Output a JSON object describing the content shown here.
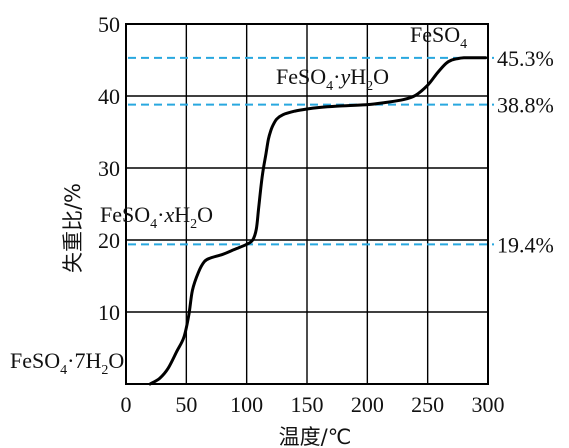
{
  "chart_data": {
    "type": "line",
    "xlabel": "温度/℃",
    "ylabel": "失重比/%",
    "xlim": [
      0,
      300
    ],
    "ylim": [
      0,
      50
    ],
    "x_ticks": [
      "0",
      "50",
      "100",
      "150",
      "200",
      "250",
      "300"
    ],
    "y_ticks": [
      "10",
      "20",
      "30",
      "40",
      "50"
    ],
    "grid": true,
    "series": [
      {
        "x": [
          20,
          28,
          35,
          42,
          48,
          52,
          55,
          60,
          65,
          70,
          80,
          90,
          100,
          105,
          108,
          110,
          113,
          116,
          118,
          120,
          122,
          125,
          130,
          140,
          150,
          160,
          175,
          200,
          215,
          230,
          240,
          250,
          258,
          265,
          270,
          275,
          280,
          290,
          298
        ],
        "y": [
          0,
          0.8,
          2.2,
          4.5,
          6.5,
          9.5,
          13,
          15.5,
          17,
          17.5,
          18,
          18.7,
          19.4,
          20,
          21.5,
          24.5,
          29,
          32,
          34,
          35.2,
          36,
          36.8,
          37.4,
          37.9,
          38.2,
          38.4,
          38.6,
          38.8,
          39.1,
          39.5,
          40.1,
          41.5,
          43.2,
          44.5,
          45,
          45.2,
          45.3,
          45.3,
          45.3
        ]
      }
    ],
    "reference_lines": [
      {
        "value": 45.3,
        "label": "45.3%"
      },
      {
        "value": 38.8,
        "label": "38.8%"
      },
      {
        "value": 19.4,
        "label": "19.4%"
      }
    ],
    "annotations": {
      "hepta": {
        "base": "FeSO",
        "sub1": "4",
        "mid": "·7H",
        "sub2": "2",
        "end": "O"
      },
      "x_hydrate": {
        "base": "FeSO",
        "sub1": "4",
        "mid": "·",
        "var": "x",
        "h": "H",
        "sub2": "2",
        "end": "O"
      },
      "y_hydrate": {
        "base": "FeSO",
        "sub1": "4",
        "mid": "·",
        "var": "y",
        "h": "H",
        "sub2": "2",
        "end": "O"
      },
      "anhydrous": {
        "base": "FeSO",
        "sub1": "4"
      }
    },
    "colors": {
      "curve": "#000000",
      "reference": "#29a8df",
      "grid": "#000000"
    }
  }
}
